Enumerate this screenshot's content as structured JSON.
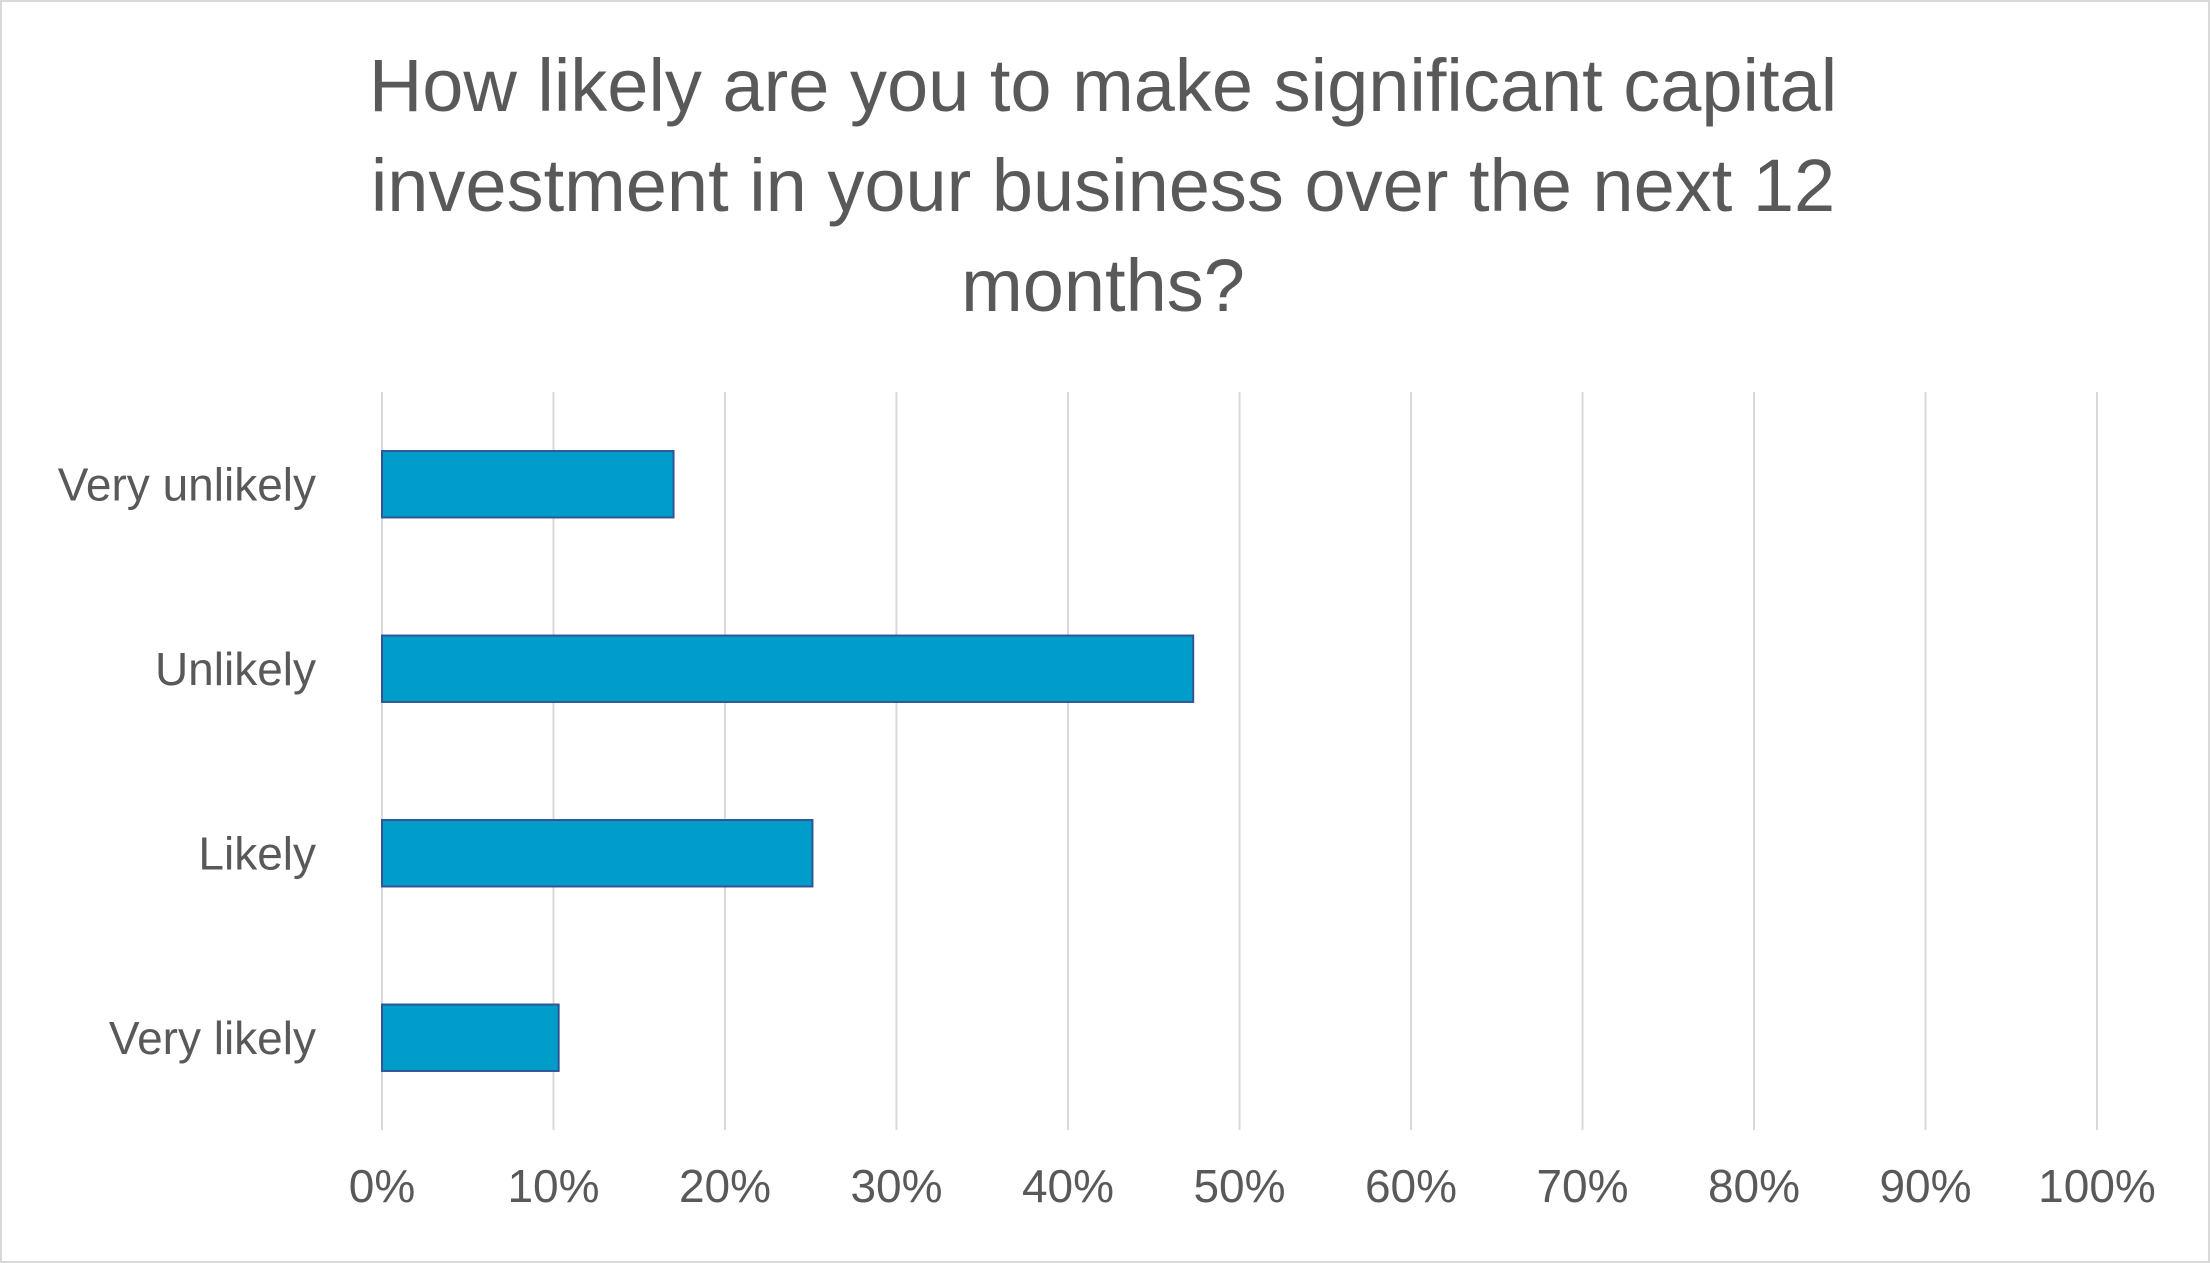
{
  "chart_data": {
    "type": "bar",
    "orientation": "horizontal",
    "title_lines": [
      "How likely are you to make significant capital",
      "investment in your business over the next 12",
      "months?"
    ],
    "categories": [
      "Very unlikely",
      "Unlikely",
      "Likely",
      "Very likely"
    ],
    "values": [
      17,
      47.3,
      25.1,
      10.3
    ],
    "value_unit": "%",
    "xlim": [
      0,
      100
    ],
    "x_ticks": [
      0,
      10,
      20,
      30,
      40,
      50,
      60,
      70,
      80,
      90,
      100
    ],
    "x_tick_labels": [
      "0%",
      "10%",
      "20%",
      "30%",
      "40%",
      "50%",
      "60%",
      "70%",
      "80%",
      "90%",
      "100%"
    ],
    "xlabel": "",
    "ylabel": "",
    "grid": "vertical",
    "legend": "none",
    "colors": {
      "bar_fill": "#009DCB",
      "bar_stroke": "#2F5597",
      "grid": "#D9D9D9",
      "text": "#595959"
    }
  }
}
